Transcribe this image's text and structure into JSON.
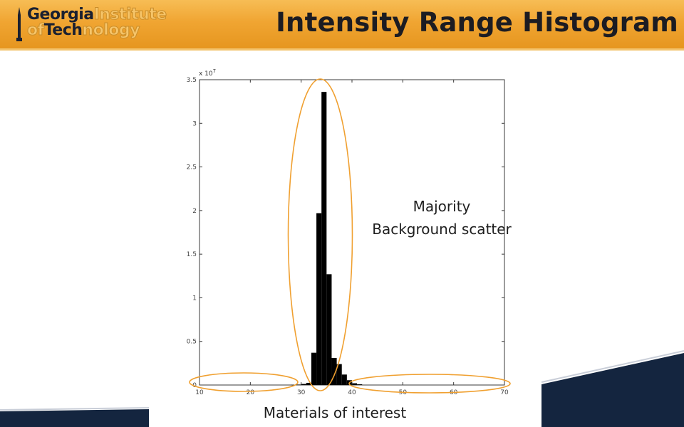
{
  "header": {
    "logo": {
      "line1_strong": "Georgia",
      "line1_light": "Institute",
      "line2_light_a": "of",
      "line2_strong": "Tech",
      "line2_light_b": "nology"
    },
    "title": "Intensity Range Histogram"
  },
  "annotations": {
    "majority_line1": "Majority",
    "majority_line2": "Background scatter",
    "materials": "Materials of interest"
  },
  "colors": {
    "header_orange": "#f0a532",
    "highlight_orange": "#f0a030",
    "navy_band": "#14253f",
    "bar_fill": "#000000"
  },
  "chart_data": {
    "type": "bar",
    "title": "",
    "xlabel": "",
    "ylabel": "",
    "y_exponent_label": "x 10",
    "y_exponent": "7",
    "xlim": [
      10,
      70
    ],
    "ylim": [
      0,
      3.5
    ],
    "xticks": [
      "10",
      "20",
      "30",
      "40",
      "50",
      "60",
      "70"
    ],
    "yticks": [
      "0",
      "0.5",
      "1",
      "1.5",
      "2",
      "2.5",
      "3",
      "3.5"
    ],
    "grid": false,
    "bin_width": 1,
    "x": [
      28,
      29,
      30,
      31,
      32,
      33,
      34,
      35,
      36,
      37,
      38,
      39,
      40,
      41
    ],
    "values": [
      0.002,
      0.005,
      0.012,
      0.025,
      0.37,
      1.97,
      3.36,
      1.27,
      0.31,
      0.24,
      0.12,
      0.055,
      0.02,
      0.008
    ]
  }
}
